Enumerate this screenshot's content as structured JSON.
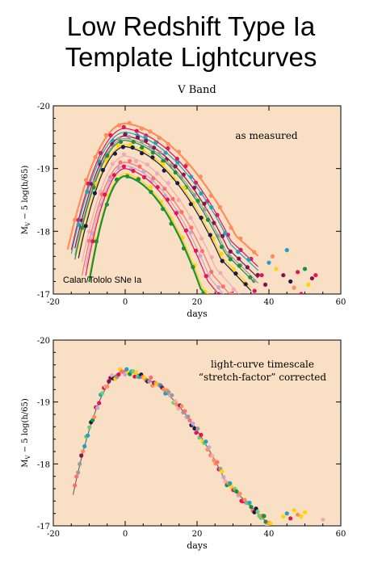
{
  "page": {
    "title_line1": "Low Redshift Type Ia",
    "title_line2": "Template Lightcurves"
  },
  "colors": {
    "panel_background": "#f9dfc4",
    "data_points": [
      "#e4135a",
      "#ff8c5a",
      "#1fa3c4",
      "#ffd400",
      "#1a8f3c",
      "#80164f",
      "#f2a9b7",
      "#9a9a9a",
      "#1a1a4a",
      "#ff6e6e",
      "#c4a6d2",
      "#6bcf6b"
    ]
  },
  "chart_data": [
    {
      "type": "line",
      "title": "V Band",
      "annotation": "as measured",
      "annotation_secondary": "Calan/Tololo SNe Ia",
      "xlabel": "days",
      "ylabel_main": "M",
      "ylabel_sub": "V",
      "ylabel_rest": " − 5 log(h/65)",
      "xlim": [
        -20,
        60
      ],
      "ylim": [
        -17,
        -20
      ],
      "xticks": [
        -20,
        0,
        20,
        40,
        60
      ],
      "yticks": [
        -20,
        -19,
        -18,
        -17
      ],
      "template_curves": [
        {
          "color": "#ff8c5a",
          "peak": -19.72,
          "t_start": -16,
          "t_end": 37,
          "stretch": 1.1
        },
        {
          "color": "#e4135a",
          "peak": -19.64,
          "t_start": -15,
          "t_end": 37,
          "stretch": 1.05
        },
        {
          "color": "#1fa3c4",
          "peak": -19.58,
          "t_start": -15,
          "t_end": 37,
          "stretch": 1.05
        },
        {
          "color": "#80164f",
          "peak": -19.52,
          "t_start": -14,
          "t_end": 37,
          "stretch": 1.02
        },
        {
          "color": "#9a9a9a",
          "peak": -19.48,
          "t_start": -14,
          "t_end": 37,
          "stretch": 1.0
        },
        {
          "color": "#1a8f3c",
          "peak": -19.45,
          "t_start": -14,
          "t_end": 36,
          "stretch": 0.99
        },
        {
          "color": "#ffd400",
          "peak": -19.38,
          "t_start": -13,
          "t_end": 35,
          "stretch": 0.96
        },
        {
          "color": "#1a1a4a",
          "peak": -19.35,
          "t_start": -13,
          "t_end": 35,
          "stretch": 0.95
        },
        {
          "color": "#f2a9b7",
          "peak": -19.2,
          "t_start": -12,
          "t_end": 33,
          "stretch": 0.9
        },
        {
          "color": "#ff6e6e",
          "peak": -19.1,
          "t_start": -12,
          "t_end": 32,
          "stretch": 0.87
        },
        {
          "color": "#c4a6d2",
          "peak": -19.05,
          "t_start": -11,
          "t_end": 30,
          "stretch": 0.84
        },
        {
          "color": "#e4135a",
          "peak": -19.0,
          "t_start": -11,
          "t_end": 30,
          "stretch": 0.82
        },
        {
          "color": "#ffd400",
          "peak": -18.92,
          "t_start": -10,
          "t_end": 27,
          "stretch": 0.76
        },
        {
          "color": "#1a8f3c",
          "peak": -18.88,
          "t_start": -10,
          "t_end": 27,
          "stretch": 0.75
        }
      ],
      "scattered_late_points": [
        {
          "x": 38,
          "y": -17.3,
          "color": "#e4135a"
        },
        {
          "x": 40,
          "y": -17.5,
          "color": "#1fa3c4"
        },
        {
          "x": 42,
          "y": -17.4,
          "color": "#ffd400"
        },
        {
          "x": 44,
          "y": -17.3,
          "color": "#80164f"
        },
        {
          "x": 45,
          "y": -17.7,
          "color": "#1fa3c4"
        },
        {
          "x": 46,
          "y": -17.2,
          "color": "#1a1a4a"
        },
        {
          "x": 47,
          "y": -17.1,
          "color": "#ff8c5a"
        },
        {
          "x": 48,
          "y": -17.35,
          "color": "#e4135a"
        },
        {
          "x": 49,
          "y": -17.0,
          "color": "#e4135a"
        },
        {
          "x": 50,
          "y": -17.4,
          "color": "#1a8f3c"
        },
        {
          "x": 51,
          "y": -17.15,
          "color": "#ffd400"
        },
        {
          "x": 52,
          "y": -17.25,
          "color": "#80164f"
        },
        {
          "x": 53,
          "y": -17.3,
          "color": "#e4135a"
        },
        {
          "x": 41,
          "y": -17.6,
          "color": "#ff8c5a"
        },
        {
          "x": 39,
          "y": -17.15,
          "color": "#80164f"
        },
        {
          "x": 36,
          "y": -17.05,
          "color": "#e4135a"
        }
      ]
    },
    {
      "type": "scatter",
      "annotation": "light-curve timescale",
      "annotation_secondary": "“stretch-factor” corrected",
      "xlabel": "days",
      "ylabel_main": "M",
      "ylabel_sub": "V",
      "ylabel_rest": " − 5 log(h/65)",
      "xlim": [
        -20,
        60
      ],
      "ylim": [
        -17,
        -20
      ],
      "xticks": [
        -20,
        0,
        20,
        40,
        60
      ],
      "yticks": [
        -20,
        -19,
        -18,
        -17
      ],
      "template": {
        "peak": -19.5,
        "t_start": -14.5,
        "t_end": 50,
        "stretch": 1.0
      },
      "scatter_range": [
        -14,
        56
      ],
      "scatter_spread": 0.06,
      "late_points": [
        {
          "x": 44,
          "y": -17.15,
          "color": "#ffd400"
        },
        {
          "x": 45,
          "y": -17.2,
          "color": "#1fa3c4"
        },
        {
          "x": 46,
          "y": -17.12,
          "color": "#e4135a"
        },
        {
          "x": 47,
          "y": -17.25,
          "color": "#ffd400"
        },
        {
          "x": 48,
          "y": -17.18,
          "color": "#ff8c5a"
        },
        {
          "x": 49,
          "y": -17.15,
          "color": "#ffd400"
        },
        {
          "x": 50,
          "y": -17.22,
          "color": "#ffd400"
        },
        {
          "x": 55,
          "y": -17.1,
          "color": "#f2a9b7"
        }
      ]
    }
  ]
}
